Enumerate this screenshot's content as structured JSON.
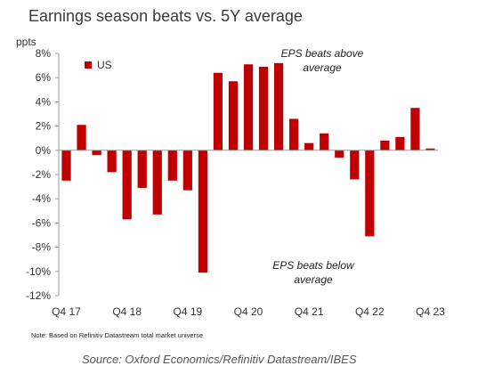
{
  "title": "Earnings season beats vs. 5Y average",
  "note": "Note: Based  on Refinitiv Datastream total market universe",
  "source": "Source: Oxford Economics/Refinitiv Datastream/IBES",
  "annotations": {
    "above_line1": "EPS beats above",
    "above_line2": "average",
    "below_line1": "EPS beats below",
    "below_line2": "average"
  },
  "colors": {
    "bar": "#c00000",
    "axis": "#999999"
  },
  "chart_data": {
    "type": "bar",
    "ylabel": "ppts",
    "ylim": [
      -12,
      8
    ],
    "yticks": [
      8,
      6,
      4,
      2,
      0,
      -2,
      -4,
      -6,
      -8,
      -10,
      -12
    ],
    "ytick_labels": [
      "8%",
      "6%",
      "4%",
      "2%",
      "0%",
      "-2%",
      "-4%",
      "-6%",
      "-8%",
      "-10%",
      "-12%"
    ],
    "xtick_labels": [
      "Q4 17",
      "Q4 18",
      "Q4 19",
      "Q4 20",
      "Q4 21",
      "Q4 22",
      "Q4 23"
    ],
    "xtick_every": 4,
    "legend": "top-left",
    "series": [
      {
        "name": "US",
        "values": [
          -2.5,
          2.1,
          -0.4,
          -1.8,
          -5.7,
          -3.1,
          -5.3,
          -2.5,
          -3.3,
          -10.1,
          6.4,
          5.7,
          7.1,
          6.9,
          7.2,
          2.6,
          0.6,
          1.4,
          -0.6,
          -2.4,
          -7.1,
          0.8,
          1.1,
          3.5,
          0.15
        ]
      }
    ]
  }
}
